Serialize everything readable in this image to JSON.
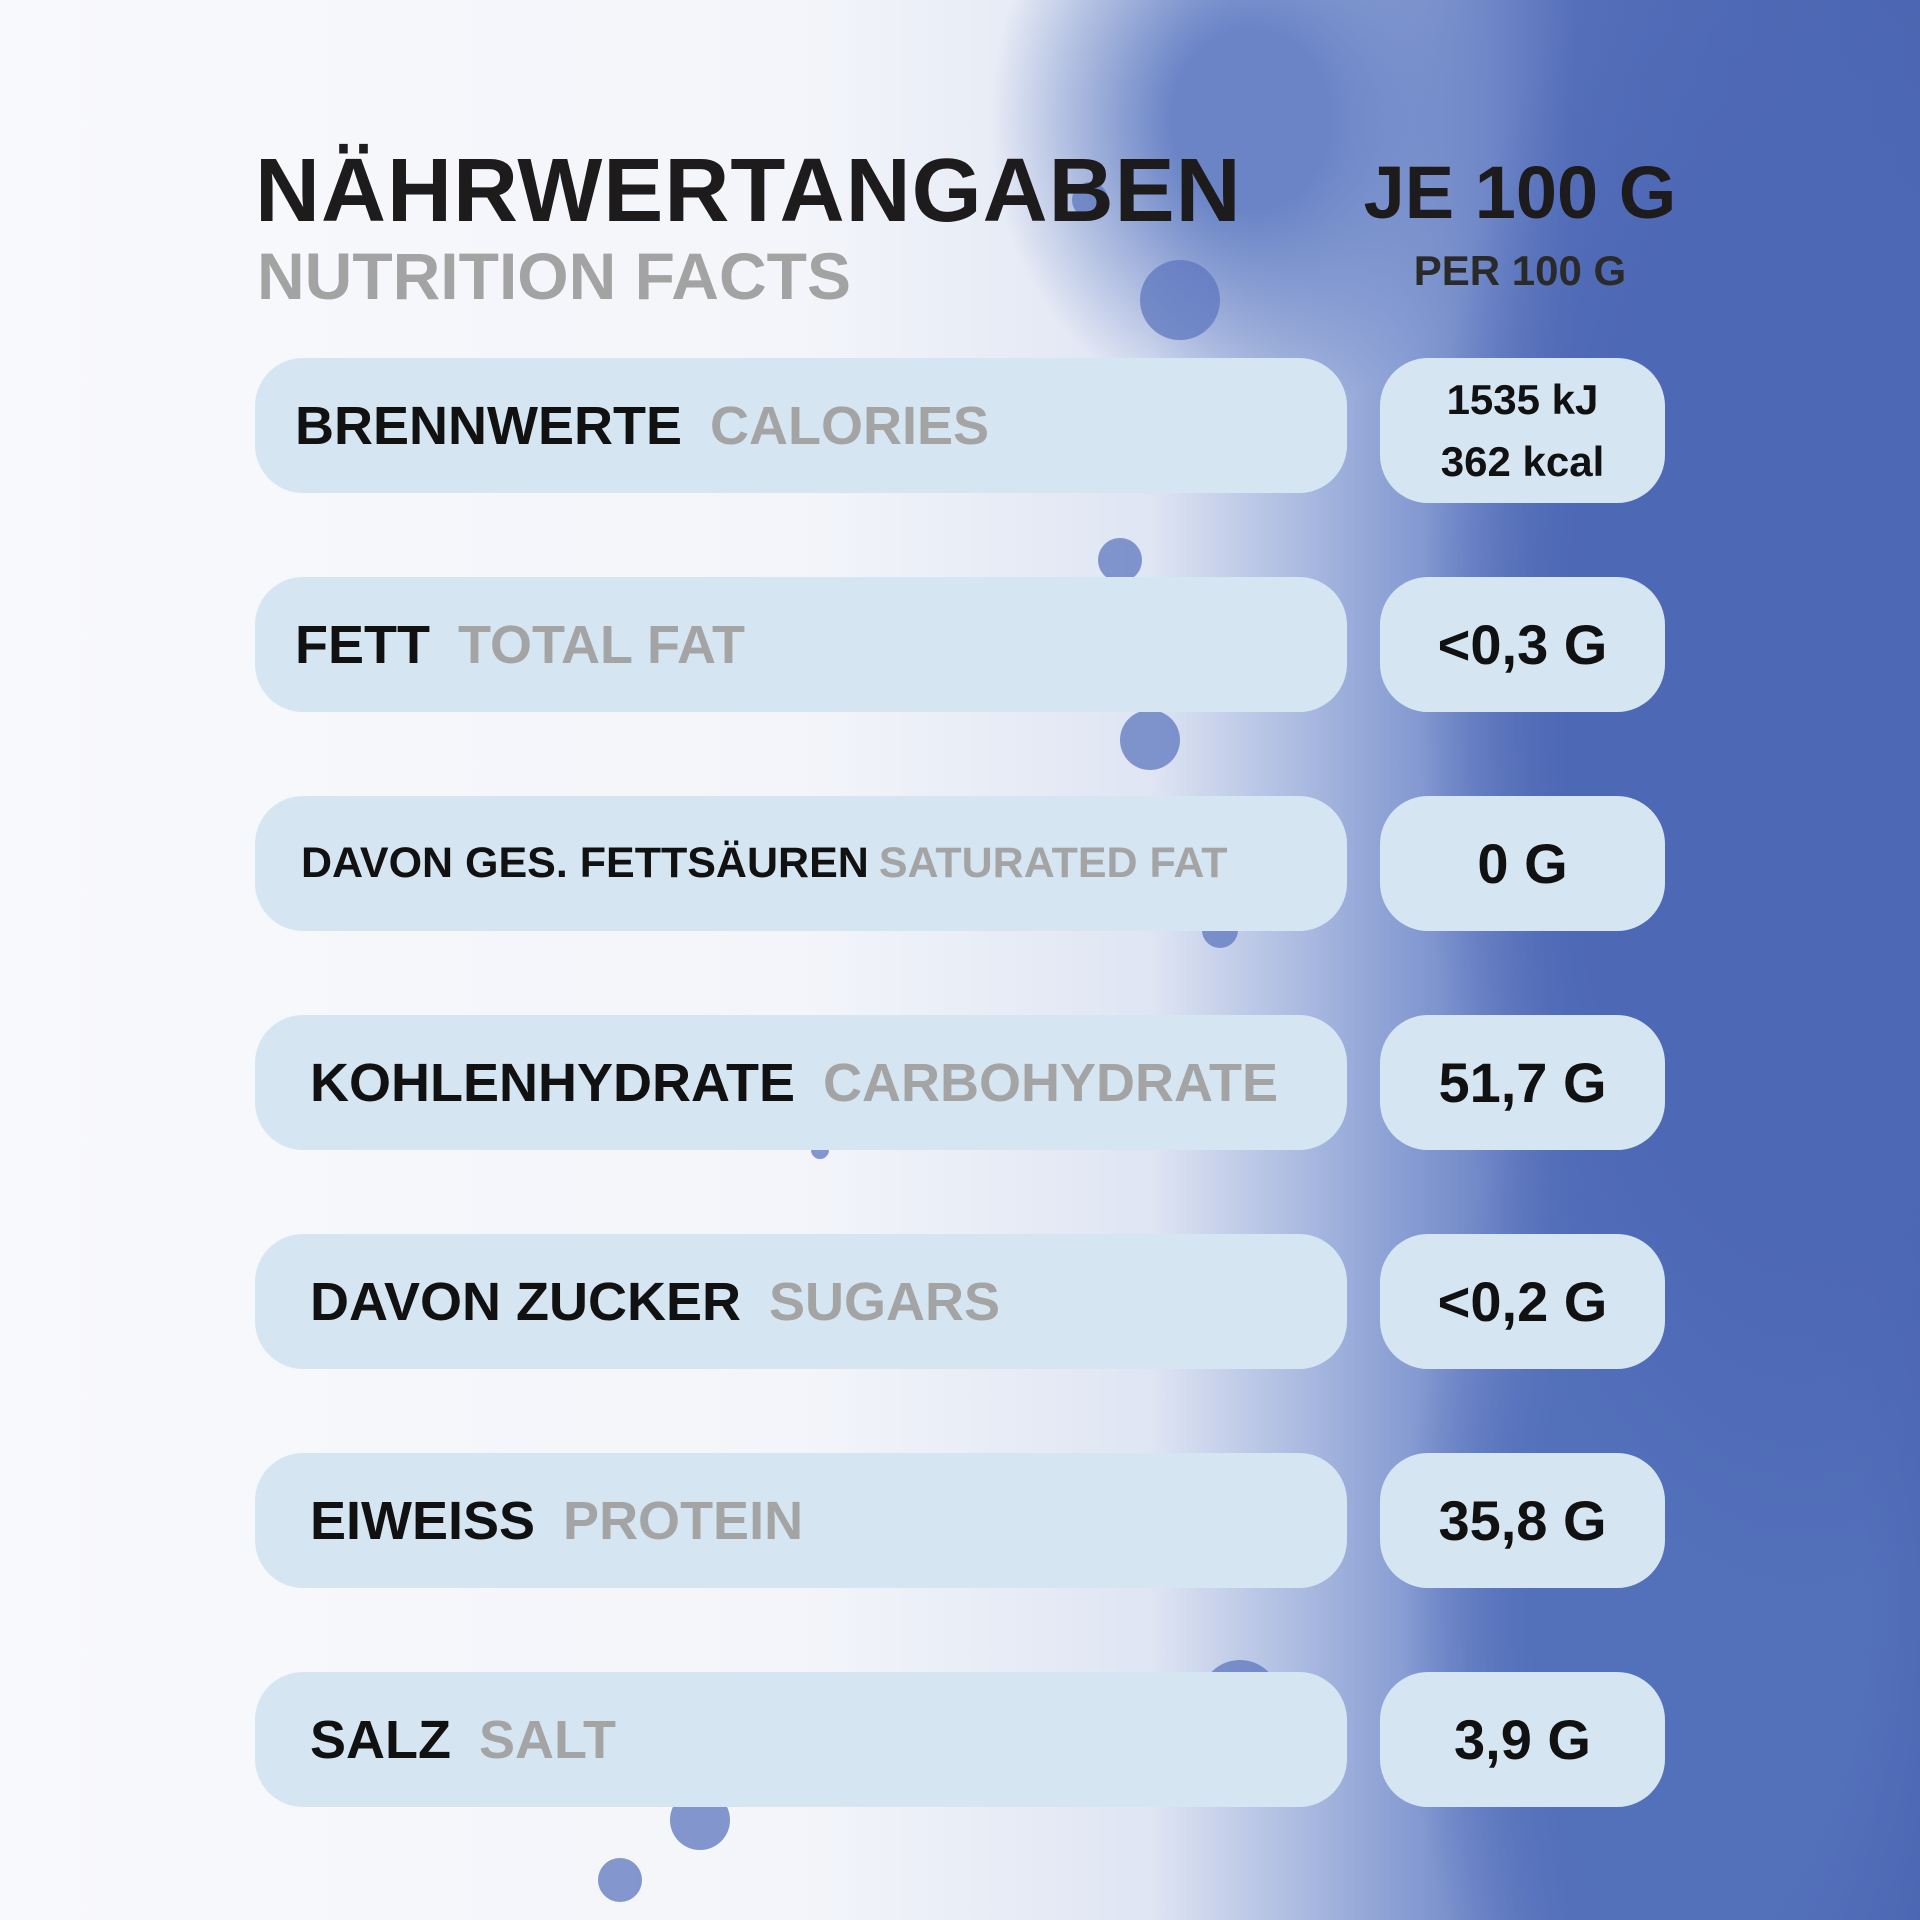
{
  "header": {
    "title": "NÄHRWERTANGABEN",
    "subtitle": "NUTRITION FACTS",
    "per_title": "JE 100 G",
    "per_subtitle": "PER 100 G"
  },
  "rows": [
    {
      "label_de": "BRENNWERTE",
      "label_en": "CALORIES",
      "values": [
        "1535 kJ",
        "362 kcal"
      ]
    },
    {
      "label_de": "FETT",
      "label_en": "TOTAL FAT",
      "values": [
        "<0,3 G"
      ]
    },
    {
      "label_de": "DAVON GES. FETTSÄUREN",
      "label_en": "SATURATED FAT",
      "values": [
        "0 G"
      ]
    },
    {
      "label_de": "KOHLENHYDRATE",
      "label_en": "CARBOHYDRATE",
      "values": [
        "51,7 G"
      ]
    },
    {
      "label_de": "DAVON ZUCKER",
      "label_en": "SUGARS",
      "values": [
        "<0,2 G"
      ]
    },
    {
      "label_de": "EIWEISS",
      "label_en": "PROTEIN",
      "values": [
        "35,8 G"
      ]
    },
    {
      "label_de": "SALZ",
      "label_en": "SALT",
      "values": [
        "3,9 G"
      ]
    }
  ]
}
